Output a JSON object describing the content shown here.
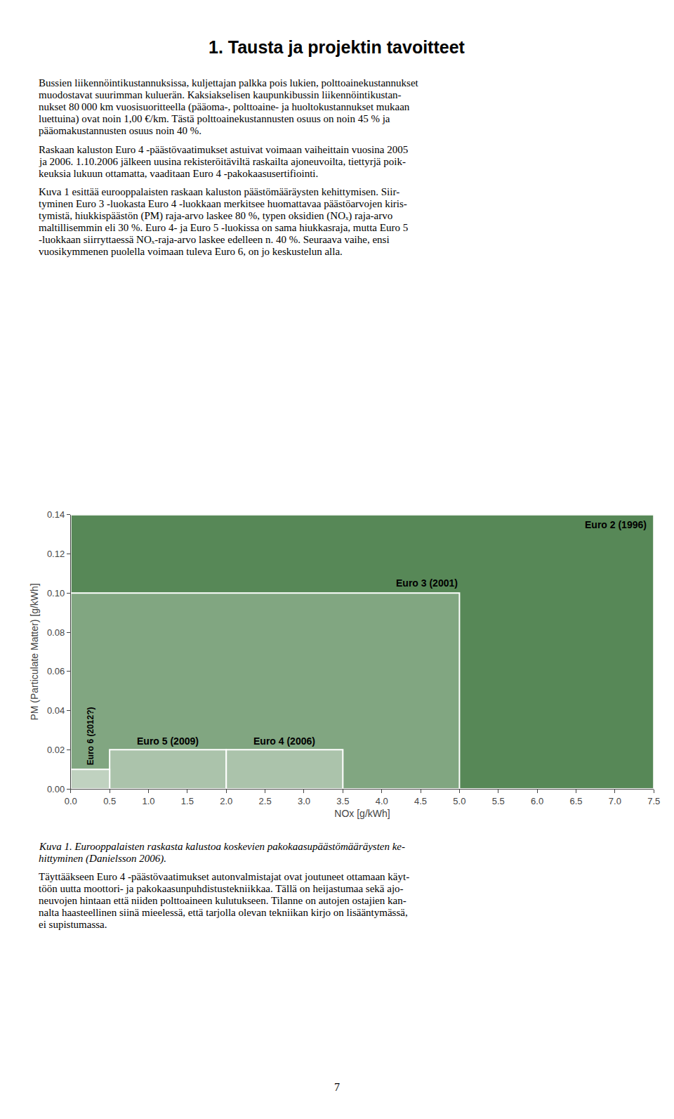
{
  "chart_data": {
    "type": "rectangles",
    "title": "1. Tausta ja projektin tavoitteet",
    "xlabel": "NOx [g/kWh]",
    "ylabel": "PM (Particulate Matter) [g/kWh]",
    "color": "#2d6a2d",
    "grid": false,
    "series": [
      {
        "name": "Euro 2 (1996)",
        "x": [
          0,
          7.5
        ],
        "values": [
          0,
          0.14
        ]
      },
      {
        "name": "Euro 3 (2001)",
        "x": [
          0,
          5.0
        ],
        "values": [
          0,
          0.1
        ]
      },
      {
        "name": "Euro 5 (2009)",
        "x": [
          0.5,
          2.0
        ],
        "values": [
          0,
          0.02
        ]
      },
      {
        "name": "Euro 4 (2006)",
        "x": [
          2.0,
          3.5
        ],
        "values": [
          0,
          0.02
        ]
      },
      {
        "name": "Euro 6 (2012?)",
        "x": [
          0.0,
          0.5
        ],
        "values": [
          0,
          0.01
        ]
      }
    ],
    "xlim": [
      0,
      7.5
    ],
    "ylim": [
      0,
      0.14
    ],
    "xticks": [
      {
        "value": 0,
        "label": "0.0"
      },
      {
        "value": 0.5,
        "label": "0.5"
      },
      {
        "value": 1,
        "label": "1.0"
      },
      {
        "value": 1.5,
        "label": "1.5"
      },
      {
        "value": 2,
        "label": "2.0"
      },
      {
        "value": 2.5,
        "label": "2.5"
      },
      {
        "value": 3,
        "label": "3.0"
      },
      {
        "value": 3.5,
        "label": "3.5"
      },
      {
        "value": 4,
        "label": "4.0"
      },
      {
        "value": 4.5,
        "label": "4.5"
      },
      {
        "value": 5,
        "label": "5.0"
      },
      {
        "value": 5.5,
        "label": "5.5"
      },
      {
        "value": 6,
        "label": "6.0"
      },
      {
        "value": 6.5,
        "label": "6.5"
      },
      {
        "value": 7,
        "label": "7.0"
      },
      {
        "value": 7.5,
        "label": "7.5"
      }
    ],
    "yticks": [
      {
        "value": 0,
        "label": "0.00"
      },
      {
        "value": 0.02,
        "label": "0.02"
      },
      {
        "value": 0.04,
        "label": "0.04"
      },
      {
        "value": 0.06,
        "label": "0.06"
      },
      {
        "value": 0.08,
        "label": "0.08"
      },
      {
        "value": 0.1,
        "label": "0.10"
      },
      {
        "value": 0.12,
        "label": "0.12"
      },
      {
        "value": 0.14,
        "label": "0.14"
      }
    ],
    "text_above": [
      [
        "Bussien liikennöintikustannuksissa, kuljettajan palkka pois lukien, polttoainekustannukset",
        "muodostavat suurimman kuluerän. Kaksiakselisen kaupunkibussin liikennöintikustan-",
        "nukset 80 000 km vuosisuoritteella (pääoma-, polttoaine- ja huoltokustannukset mukaan",
        "luettuina) ovat noin 1,00 €/km. Tästä polttoainekustannusten osuus on noin 45 % ja",
        "pääomakustannusten osuus noin 40 %."
      ],
      [
        "Raskaan kaluston Euro 4 -päästövaatimukset astuivat voimaan vaiheittain vuosina 2005",
        "ja 2006. 1.10.2006 jälkeen uusina rekisteröitäviltä raskailta ajoneuvoilta, tiettyrjä poik-",
        "keuksia lukuun ottamatta, vaaditaan Euro 4 -pakokaasusertifiointi."
      ],
      [
        "Kuva 1 esittää eurooppalaisten raskaan kaluston päästömääräysten kehittymisen. Siir-",
        "tyminen Euro 3 -luokasta Euro 4 -luokkaan merkitsee huomattavaa päästöarvojen kiris-",
        "tymistä, hiukkispäästön (PM) raja-arvo laskee 80 %, typen oksidien (NOₓ) raja-arvo",
        "maltillisemmin eli 30 %. Euro 4- ja Euro 5 -luokissa on sama hiukkasraja, mutta Euro 5",
        "-luokkaan siirryttaessä NOₓ-raja-arvo laskee edelleen n. 40 %. Seuraava vaihe, ensi",
        "vuosikymmenen puolella voimaan tuleva Euro 6, on jo keskustelun alla."
      ]
    ],
    "caption": [
      "Kuva 1. Eurooppalaisten raskasta kalustoa koskevien pakokaasupäästömääräysten ke-",
      "hittyminen (Danielsson 2006)."
    ],
    "text_below": [
      [
        "Täyttääkseen Euro 4 -päästövaatimukset autonvalmistajat ovat joutuneet ottamaan käyt-",
        "töön uutta moottori- ja pakokaasunpuhdistustekniikkaa. Tällä on heijastumaa sekä ajo-",
        "neuvojen hintaan että niiden polttoaineen kulutukseen. Tilanne on autojen ostajien kan-",
        "nalta haasteellinen siinä mieelessä, että tarjolla olevan tekniikan kirjo on lisääntymässä,",
        "ei supistumassa."
      ]
    ],
    "page_number": "7"
  }
}
